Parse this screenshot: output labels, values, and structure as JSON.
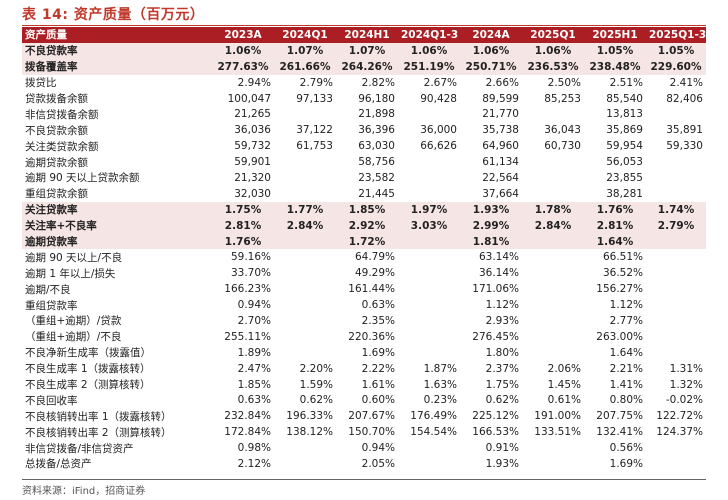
{
  "title": "表 14: 资产质量（百万元）",
  "header": [
    "资产质量",
    "2023A",
    "2024Q1",
    "2024H1",
    "2024Q1-3",
    "2024A",
    "2025Q1",
    "2025H1",
    "2025Q1-3"
  ],
  "rows": [
    {
      "label": "不良贷款率",
      "values": [
        "1.06%",
        "1.07%",
        "1.07%",
        "1.06%",
        "1.06%",
        "1.06%",
        "1.05%",
        "1.05%"
      ],
      "style": "hl"
    },
    {
      "label": "拨备覆盖率",
      "values": [
        "277.63%",
        "261.66%",
        "264.26%",
        "251.19%",
        "250.71%",
        "236.53%",
        "238.48%",
        "229.60%"
      ],
      "style": "hl"
    },
    {
      "label": "拨贷比",
      "values": [
        "2.94%",
        "2.79%",
        "2.82%",
        "2.67%",
        "2.66%",
        "2.50%",
        "2.51%",
        "2.41%"
      ],
      "style": ""
    },
    {
      "label": "贷款拨备余额",
      "values": [
        "100,047",
        "97,133",
        "96,180",
        "90,428",
        "89,599",
        "85,253",
        "85,540",
        "82,406"
      ],
      "style": ""
    },
    {
      "label": "非信贷拨备余额",
      "values": [
        "21,265",
        "",
        "21,898",
        "",
        "21,770",
        "",
        "13,813",
        ""
      ],
      "style": ""
    },
    {
      "label": "不良贷款余额",
      "values": [
        "36,036",
        "37,122",
        "36,396",
        "36,000",
        "35,738",
        "36,043",
        "35,869",
        "35,891"
      ],
      "style": ""
    },
    {
      "label": "关注类贷款余额",
      "values": [
        "59,732",
        "61,753",
        "63,030",
        "66,626",
        "64,960",
        "60,730",
        "59,954",
        "59,330"
      ],
      "style": ""
    },
    {
      "label": "逾期贷款余额",
      "values": [
        "59,901",
        "",
        "58,756",
        "",
        "61,134",
        "",
        "56,053",
        ""
      ],
      "style": ""
    },
    {
      "label": "逾期 90 天以上贷款余额",
      "values": [
        "21,320",
        "",
        "23,582",
        "",
        "22,564",
        "",
        "23,855",
        ""
      ],
      "style": ""
    },
    {
      "label": "重组贷款余额",
      "values": [
        "32,030",
        "",
        "21,445",
        "",
        "37,664",
        "",
        "38,281",
        ""
      ],
      "style": ""
    },
    {
      "label": "关注贷款率",
      "values": [
        "1.75%",
        "1.77%",
        "1.85%",
        "1.97%",
        "1.93%",
        "1.78%",
        "1.76%",
        "1.74%"
      ],
      "style": "hl"
    },
    {
      "label": "关注率+不良率",
      "values": [
        "2.81%",
        "2.84%",
        "2.92%",
        "3.03%",
        "2.99%",
        "2.84%",
        "2.81%",
        "2.79%"
      ],
      "style": "hl"
    },
    {
      "label": "逾期贷款率",
      "values": [
        "1.76%",
        "",
        "1.72%",
        "",
        "1.81%",
        "",
        "1.64%",
        ""
      ],
      "style": "hl-partial"
    },
    {
      "label": "逾期 90 天以上/不良",
      "values": [
        "59.16%",
        "",
        "64.79%",
        "",
        "63.14%",
        "",
        "66.51%",
        ""
      ],
      "style": ""
    },
    {
      "label": "逾期 1 年以上/损失",
      "values": [
        "33.70%",
        "",
        "49.29%",
        "",
        "36.14%",
        "",
        "36.52%",
        ""
      ],
      "style": ""
    },
    {
      "label": "逾期/不良",
      "values": [
        "166.23%",
        "",
        "161.44%",
        "",
        "171.06%",
        "",
        "156.27%",
        ""
      ],
      "style": ""
    },
    {
      "label": "重组贷款率",
      "values": [
        "0.94%",
        "",
        "0.63%",
        "",
        "1.12%",
        "",
        "1.12%",
        ""
      ],
      "style": ""
    },
    {
      "label": "（重组+逾期）/贷款",
      "values": [
        "2.70%",
        "",
        "2.35%",
        "",
        "2.93%",
        "",
        "2.77%",
        ""
      ],
      "style": ""
    },
    {
      "label": "（重组+逾期）/不良",
      "values": [
        "255.11%",
        "",
        "220.36%",
        "",
        "276.45%",
        "",
        "263.00%",
        ""
      ],
      "style": ""
    },
    {
      "label": "不良净新生成率（拨露值）",
      "values": [
        "1.89%",
        "",
        "1.69%",
        "",
        "1.80%",
        "",
        "1.64%",
        ""
      ],
      "style": ""
    },
    {
      "label": "不良生成率 1（拨露核转）",
      "values": [
        "2.47%",
        "2.20%",
        "2.22%",
        "1.87%",
        "2.37%",
        "2.06%",
        "2.21%",
        "1.31%"
      ],
      "style": ""
    },
    {
      "label": "不良生成率 2（测算核转）",
      "values": [
        "1.85%",
        "1.59%",
        "1.61%",
        "1.63%",
        "1.75%",
        "1.45%",
        "1.41%",
        "1.32%"
      ],
      "style": ""
    },
    {
      "label": "不良回收率",
      "values": [
        "0.63%",
        "0.62%",
        "0.60%",
        "0.23%",
        "0.62%",
        "0.61%",
        "0.80%",
        "-0.02%"
      ],
      "style": ""
    },
    {
      "label": "不良核销转出率 1（拨露核转）",
      "values": [
        "232.84%",
        "196.33%",
        "207.67%",
        "176.49%",
        "225.12%",
        "191.00%",
        "207.75%",
        "122.72%"
      ],
      "style": ""
    },
    {
      "label": "不良核销转出率 2（测算核转）",
      "values": [
        "172.84%",
        "138.12%",
        "150.70%",
        "154.54%",
        "166.53%",
        "133.51%",
        "132.41%",
        "124.37%"
      ],
      "style": ""
    },
    {
      "label": "非信贷拨备/非信贷资产",
      "values": [
        "0.98%",
        "",
        "0.94%",
        "",
        "0.91%",
        "",
        "0.56%",
        ""
      ],
      "style": ""
    },
    {
      "label": "总拨备/总资产",
      "values": [
        "2.12%",
        "",
        "2.05%",
        "",
        "1.93%",
        "",
        "1.69%",
        ""
      ],
      "style": ""
    }
  ],
  "source_note": "资料来源：iFind，招商证券"
}
